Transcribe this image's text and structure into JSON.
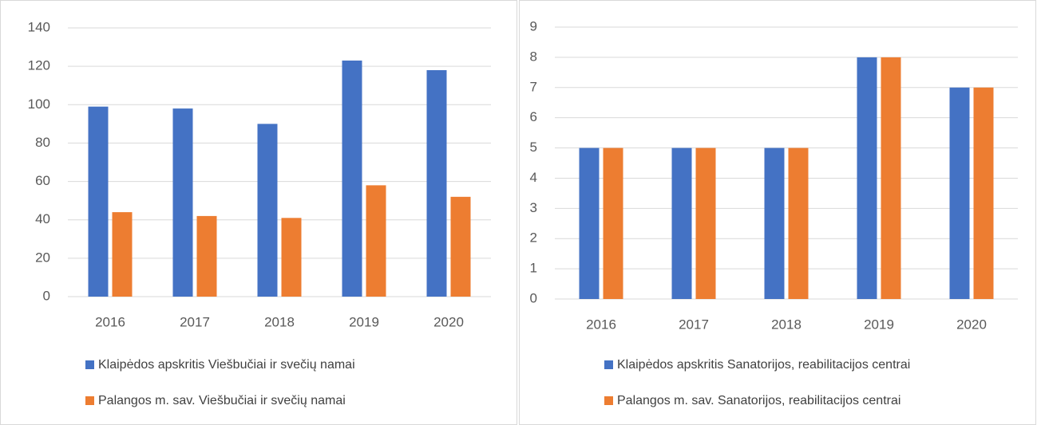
{
  "chart_data": [
    {
      "type": "bar",
      "categories": [
        "2016",
        "2017",
        "2018",
        "2019",
        "2020"
      ],
      "series": [
        {
          "name": "Klaipėdos apskritis Viešbučiai ir svečių namai",
          "color": "#4472c4",
          "values": [
            99,
            98,
            90,
            123,
            118
          ]
        },
        {
          "name": "Palangos m. sav. Viešbučiai ir svečių namai",
          "color": "#ed7d31",
          "values": [
            44,
            42,
            41,
            58,
            52
          ]
        }
      ],
      "ylim": [
        0,
        140
      ],
      "yticks": [
        0,
        20,
        40,
        60,
        80,
        100,
        120,
        140
      ],
      "grid": true,
      "legend": "bottom"
    },
    {
      "type": "bar",
      "categories": [
        "2016",
        "2017",
        "2018",
        "2019",
        "2020"
      ],
      "series": [
        {
          "name": "Klaipėdos apskritis Sanatorijos, reabilitacijos centrai",
          "color": "#4472c4",
          "values": [
            5,
            5,
            5,
            8,
            7
          ]
        },
        {
          "name": "Palangos m. sav. Sanatorijos, reabilitacijos centrai",
          "color": "#ed7d31",
          "values": [
            5,
            5,
            5,
            8,
            7
          ]
        }
      ],
      "ylim": [
        0,
        9
      ],
      "yticks": [
        0,
        1,
        2,
        3,
        4,
        5,
        6,
        7,
        8,
        9
      ],
      "grid": true,
      "legend": "bottom"
    }
  ]
}
